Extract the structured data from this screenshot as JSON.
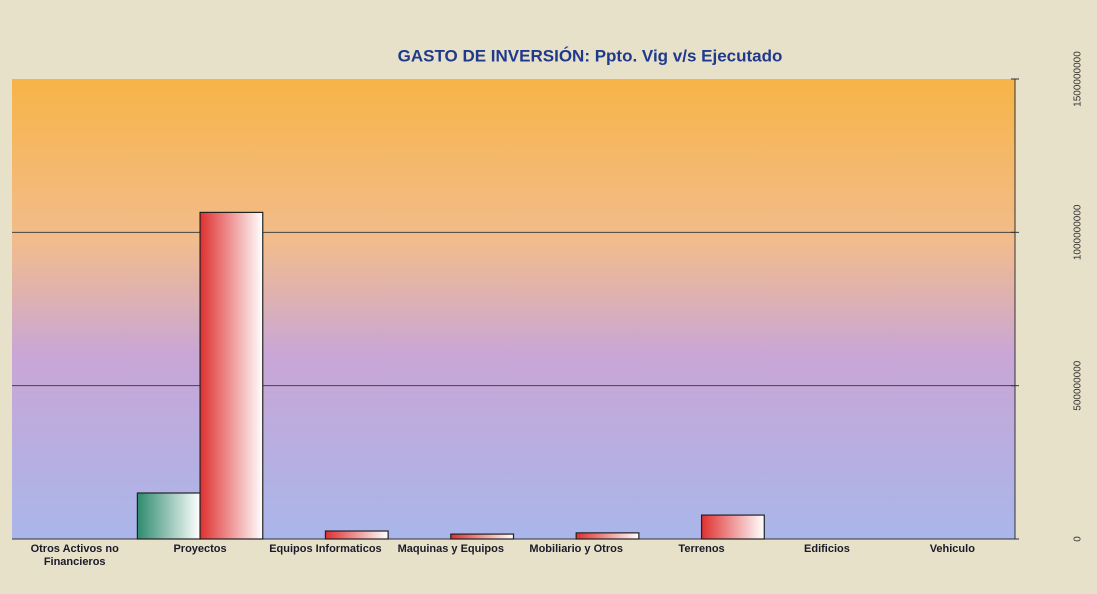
{
  "chart_data": {
    "type": "bar",
    "title": "GASTO DE INVERSIÓN: Ppto. Vig v/s Ejecutado",
    "categories": [
      "Otros Activos no Financieros",
      "Proyectos",
      "Equipos Informaticos",
      "Maquinas y Equipos",
      "Mobiliario y Otros",
      "Terrenos",
      "Edificios",
      "Vehiculo"
    ],
    "series": [
      {
        "color": "#2e8b6e",
        "values": [
          0,
          150000000,
          0,
          0,
          0,
          0,
          0,
          0
        ]
      },
      {
        "color": "#e03030",
        "values": [
          0,
          1065000000,
          26000000,
          16000000,
          20000000,
          78000000,
          0,
          0
        ]
      }
    ],
    "ylim": [
      0,
      1500000000
    ],
    "yticks": [
      0,
      500000000,
      1000000000,
      1500000000
    ],
    "grid": true
  }
}
